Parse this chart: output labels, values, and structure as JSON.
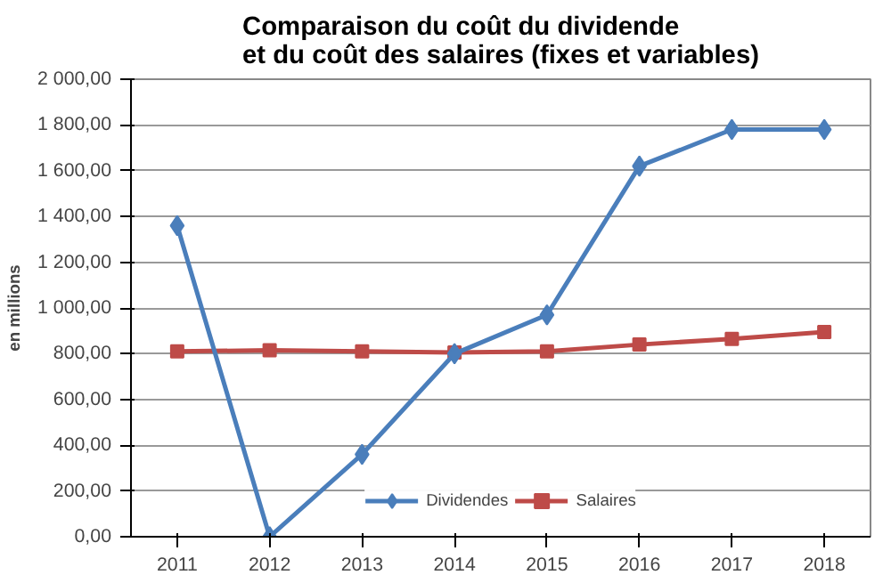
{
  "chart_data": {
    "type": "line",
    "title": "Comparaison du coût du dividende\net du coût des salaires (fixes et variables)",
    "ylabel": "en millions",
    "categories": [
      "2011",
      "2012",
      "2013",
      "2014",
      "2015",
      "2016",
      "2017",
      "2018"
    ],
    "series": [
      {
        "name": "Dividendes",
        "color": "#4a7ebb",
        "marker": "diamond",
        "values": [
          1360,
          0,
          360,
          800,
          970,
          1620,
          1780,
          1780
        ]
      },
      {
        "name": "Salaires",
        "color": "#be4b48",
        "marker": "square",
        "values": [
          810,
          815,
          810,
          805,
          810,
          840,
          865,
          895
        ]
      }
    ],
    "ylim": [
      0,
      2000
    ],
    "yticks": [
      {
        "value": 0,
        "label": "0,00"
      },
      {
        "value": 200,
        "label": "200,00"
      },
      {
        "value": 400,
        "label": "400,00"
      },
      {
        "value": 600,
        "label": "600,00"
      },
      {
        "value": 800,
        "label": "800,00"
      },
      {
        "value": 1000,
        "label": "1 000,00"
      },
      {
        "value": 1200,
        "label": "1 200,00"
      },
      {
        "value": 1400,
        "label": "1 400,00"
      },
      {
        "value": 1600,
        "label": "1 600,00"
      },
      {
        "value": 1800,
        "label": "1 800,00"
      },
      {
        "value": 2000,
        "label": "2 000,00"
      }
    ],
    "grid": "y",
    "legend": "bottom",
    "line_style": "solid"
  }
}
